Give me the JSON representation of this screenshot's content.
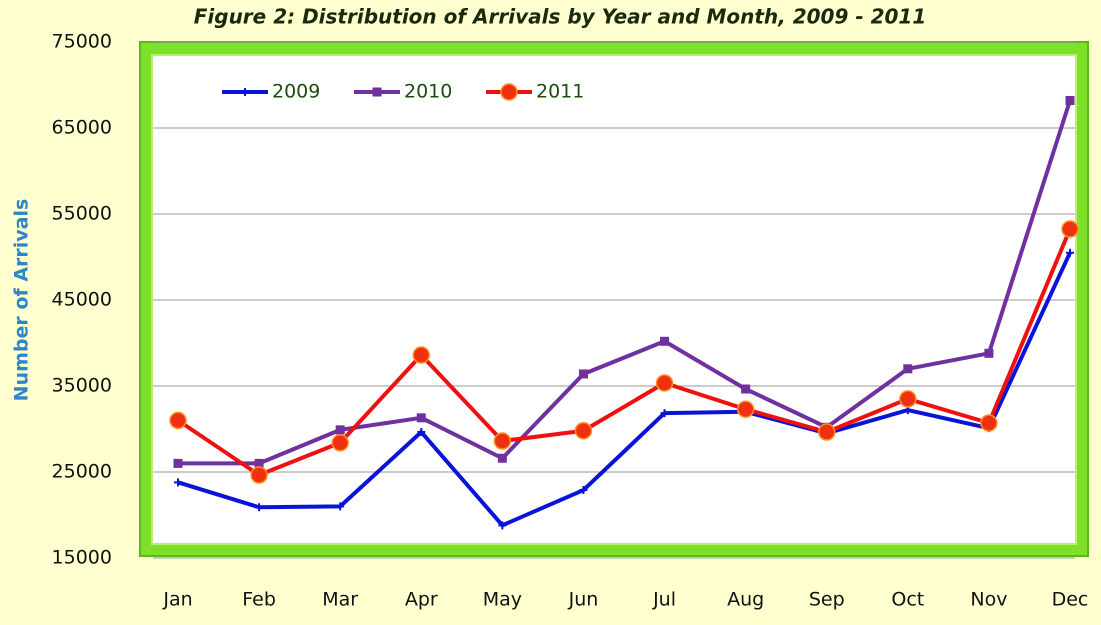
{
  "chart_data": {
    "type": "line",
    "title": "Figure 2: Distribution of Arrivals by  Year and Month, 2009 -  2011",
    "y_label": "Number of Arrivals",
    "categories": [
      "Jan",
      "Feb",
      "Mar",
      "Apr",
      "May",
      "Jun",
      "Jul",
      "Aug",
      "Sep",
      "Oct",
      "Nov",
      "Dec"
    ],
    "series": [
      {
        "name": "2009",
        "color": "#0a14d8",
        "marker": "plus",
        "values": [
          23800,
          20900,
          21000,
          29650,
          18800,
          22900,
          31850,
          32000,
          29500,
          32200,
          30100,
          50500
        ]
      },
      {
        "name": "2010",
        "color": "#7030a0",
        "marker": "square",
        "values": [
          26000,
          26000,
          29900,
          31300,
          26600,
          36400,
          40200,
          34650,
          30200,
          37000,
          38800,
          68200
        ]
      },
      {
        "name": "2011",
        "color": "#f01010",
        "marker": "circle",
        "values": [
          31000,
          24650,
          28400,
          38600,
          28600,
          29800,
          35350,
          32300,
          29650,
          33500,
          30700,
          53250
        ]
      }
    ],
    "ylim": [
      15000,
      75000
    ],
    "yticks": [
      15000,
      25000,
      35000,
      45000,
      55000,
      65000,
      75000
    ],
    "grid": true,
    "legend": "top-left"
  }
}
